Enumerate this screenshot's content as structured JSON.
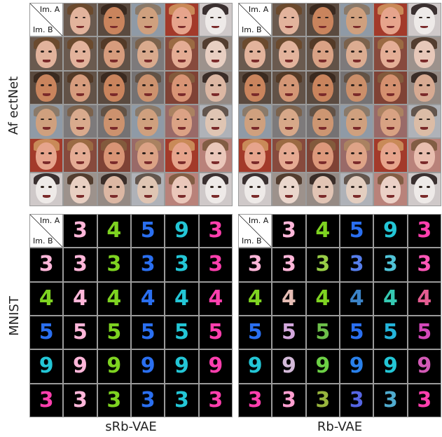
{
  "row_labels": {
    "top": "Af ectNet",
    "bottom": "MNIST"
  },
  "column_labels": {
    "left": "sRb-VAE",
    "right": "Rb-VAE"
  },
  "corner": {
    "a": "Im. A",
    "b": "Im. B"
  },
  "faces": {
    "inputs": [
      {
        "skin": "#e2b39c",
        "hair": "#6b4a2e",
        "bg": "#6a5a4f"
      },
      {
        "skin": "#c9845d",
        "hair": "#3a2a20",
        "bg": "#5a4a3f"
      },
      {
        "skin": "#cfa07e",
        "hair": "#8a7a6a",
        "bg": "#8f9aa6"
      },
      {
        "skin": "#e6a48c",
        "hair": "#c98a58",
        "bg": "#a33a2a"
      },
      {
        "skin": "#eeeae8",
        "hair": "#3a3030",
        "bg": "#cfc9c9"
      }
    ]
  },
  "digits": {
    "inputs": [
      {
        "char": "3",
        "color": "#ffb6d9"
      },
      {
        "char": "4",
        "color": "#7ed321"
      },
      {
        "char": "5",
        "color": "#2a6ff0"
      },
      {
        "char": "9",
        "color": "#23c6d6"
      },
      {
        "char": "3",
        "color": "#ff3fae"
      }
    ]
  }
}
